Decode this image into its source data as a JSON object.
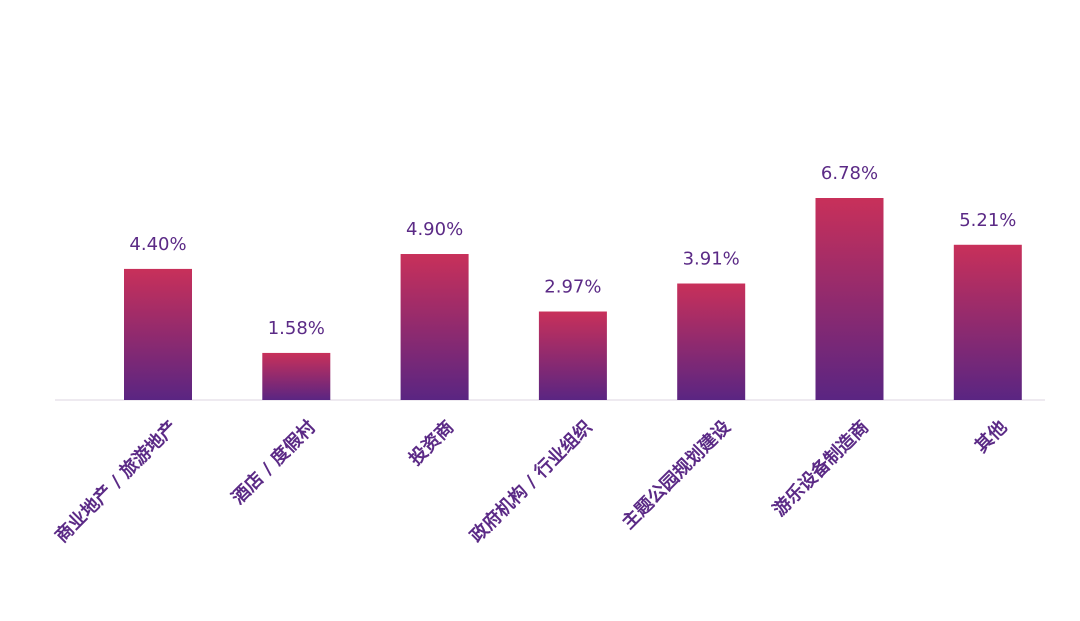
{
  "chart_data": {
    "type": "bar",
    "categories": [
      "商业地产 / 旅游地产",
      "酒店 / 度假村",
      "投资商",
      "政府机构 / 行业组织",
      "主题公园规划建设",
      "游乐设备制造商",
      "其他"
    ],
    "values": [
      4.4,
      1.58,
      4.9,
      2.97,
      3.91,
      6.78,
      5.21
    ],
    "value_labels": [
      "4.40%",
      "1.58%",
      "4.90%",
      "2.97%",
      "3.91%",
      "6.78%",
      "5.21%"
    ],
    "color": [
      "#c8305a",
      "#5a2582"
    ]
  }
}
